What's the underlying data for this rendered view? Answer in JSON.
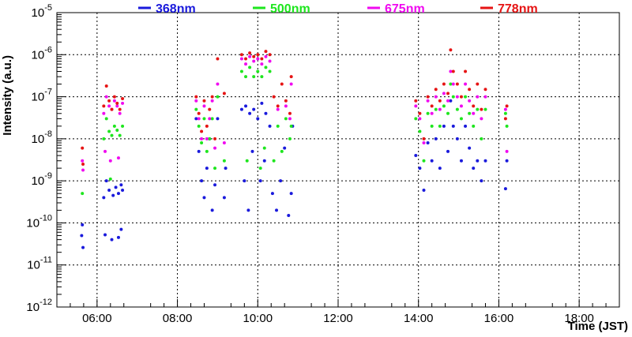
{
  "chart_data": {
    "type": "scatter",
    "title": "",
    "xlabel": "Time (JST)",
    "ylabel": "Intensity (a.u.)",
    "x_scale": "time",
    "y_scale": "log",
    "xlim": [
      "05:00",
      "19:00"
    ],
    "ylim": [
      1e-12,
      1e-05
    ],
    "grid": true,
    "x_ticks": [
      "06:00",
      "08:00",
      "10:00",
      "12:00",
      "14:00",
      "16:00",
      "18:00"
    ],
    "y_ticks": [
      {
        "base": "10",
        "exp": "-12",
        "value": 1e-12
      },
      {
        "base": "10",
        "exp": "-11",
        "value": 1e-11
      },
      {
        "base": "10",
        "exp": "-10",
        "value": 1e-10
      },
      {
        "base": "10",
        "exp": "-9",
        "value": 1e-09
      },
      {
        "base": "10",
        "exp": "-8",
        "value": 1e-08
      },
      {
        "base": "10",
        "exp": "-7",
        "value": 1e-07
      },
      {
        "base": "10",
        "exp": "-6",
        "value": 1e-06
      },
      {
        "base": "10",
        "exp": "-5",
        "value": 1e-05
      }
    ],
    "legend_position": "top",
    "series": [
      {
        "name": "368nm",
        "color": "#1a1adc",
        "points": [
          [
            "05:38",
            9e-11
          ],
          [
            "05:39",
            2.6e-11
          ],
          [
            "05:37",
            5e-11
          ],
          [
            "06:10",
            4e-10
          ],
          [
            "06:14",
            1e-09
          ],
          [
            "06:18",
            6e-10
          ],
          [
            "06:24",
            4.5e-10
          ],
          [
            "06:28",
            7e-10
          ],
          [
            "06:32",
            5e-10
          ],
          [
            "06:36",
            8e-10
          ],
          [
            "06:38",
            6e-10
          ],
          [
            "06:22",
            4e-11
          ],
          [
            "06:32",
            4.5e-11
          ],
          [
            "06:36",
            7e-11
          ],
          [
            "06:12",
            5.2e-11
          ],
          [
            "08:28",
            3e-08
          ],
          [
            "08:32",
            5e-09
          ],
          [
            "08:36",
            1e-09
          ],
          [
            "08:40",
            4e-10
          ],
          [
            "08:44",
            2e-09
          ],
          [
            "08:48",
            1e-08
          ],
          [
            "08:52",
            2e-10
          ],
          [
            "08:56",
            8e-10
          ],
          [
            "09:00",
            3e-08
          ],
          [
            "09:10",
            4e-10
          ],
          [
            "09:12",
            2e-09
          ],
          [
            "09:36",
            5e-08
          ],
          [
            "09:42",
            6e-08
          ],
          [
            "09:48",
            4e-08
          ],
          [
            "09:54",
            5e-08
          ],
          [
            "10:00",
            3e-08
          ],
          [
            "10:06",
            7e-08
          ],
          [
            "10:12",
            4e-08
          ],
          [
            "10:18",
            2e-08
          ],
          [
            "09:40",
            1e-09
          ],
          [
            "09:46",
            2e-10
          ],
          [
            "09:52",
            5e-09
          ],
          [
            "10:04",
            1e-09
          ],
          [
            "10:10",
            3e-09
          ],
          [
            "10:22",
            5e-10
          ],
          [
            "10:28",
            2e-10
          ],
          [
            "10:34",
            1e-09
          ],
          [
            "10:40",
            6e-09
          ],
          [
            "10:46",
            1.5e-10
          ],
          [
            "10:50",
            5e-10
          ],
          [
            "10:52",
            2e-08
          ],
          [
            "13:56",
            4e-09
          ],
          [
            "14:02",
            2e-09
          ],
          [
            "14:08",
            6e-10
          ],
          [
            "14:14",
            8e-09
          ],
          [
            "14:20",
            3e-09
          ],
          [
            "14:26",
            1e-08
          ],
          [
            "14:32",
            2e-09
          ],
          [
            "14:38",
            2e-08
          ],
          [
            "14:44",
            5e-09
          ],
          [
            "14:48",
            8e-08
          ],
          [
            "14:52",
            2e-08
          ],
          [
            "14:58",
            1e-08
          ],
          [
            "15:04",
            3e-09
          ],
          [
            "15:10",
            2e-08
          ],
          [
            "15:16",
            6e-09
          ],
          [
            "15:22",
            2e-09
          ],
          [
            "15:28",
            3e-09
          ],
          [
            "15:34",
            1e-09
          ],
          [
            "15:40",
            3e-09
          ],
          [
            "16:12",
            3e-09
          ],
          [
            "16:10",
            6.5e-10
          ]
        ]
      },
      {
        "name": "500nm",
        "color": "#1ee61e",
        "points": [
          [
            "05:38",
            5e-10
          ],
          [
            "06:10",
            1e-08
          ],
          [
            "06:14",
            3e-08
          ],
          [
            "06:18",
            1.5e-08
          ],
          [
            "06:22",
            1.2e-08
          ],
          [
            "06:26",
            2e-08
          ],
          [
            "06:30",
            1.6e-08
          ],
          [
            "06:34",
            1.2e-08
          ],
          [
            "06:38",
            2e-08
          ],
          [
            "06:20",
            1.1e-09
          ],
          [
            "08:28",
            5e-08
          ],
          [
            "08:32",
            2e-08
          ],
          [
            "08:36",
            8e-09
          ],
          [
            "08:40",
            3e-08
          ],
          [
            "08:44",
            5e-09
          ],
          [
            "08:48",
            1e-08
          ],
          [
            "08:52",
            3e-08
          ],
          [
            "08:56",
            2e-09
          ],
          [
            "09:00",
            1e-07
          ],
          [
            "09:10",
            3e-09
          ],
          [
            "09:36",
            4e-07
          ],
          [
            "09:42",
            3e-07
          ],
          [
            "09:48",
            5e-07
          ],
          [
            "09:54",
            3e-07
          ],
          [
            "10:00",
            4e-07
          ],
          [
            "10:06",
            3e-07
          ],
          [
            "10:12",
            5e-07
          ],
          [
            "10:18",
            4e-07
          ],
          [
            "09:44",
            3e-09
          ],
          [
            "10:04",
            2e-09
          ],
          [
            "10:10",
            6e-09
          ],
          [
            "10:24",
            3e-09
          ],
          [
            "10:30",
            2e-08
          ],
          [
            "10:36",
            5e-09
          ],
          [
            "10:42",
            3e-08
          ],
          [
            "10:48",
            1e-08
          ],
          [
            "10:50",
            2e-08
          ],
          [
            "13:56",
            3e-08
          ],
          [
            "14:02",
            1.5e-08
          ],
          [
            "14:08",
            3e-09
          ],
          [
            "14:14",
            4e-08
          ],
          [
            "14:20",
            2e-08
          ],
          [
            "14:26",
            5e-08
          ],
          [
            "14:32",
            2e-08
          ],
          [
            "14:38",
            6e-08
          ],
          [
            "14:44",
            4e-08
          ],
          [
            "14:48",
            2e-07
          ],
          [
            "14:52",
            1e-07
          ],
          [
            "14:58",
            5e-08
          ],
          [
            "15:04",
            3e-08
          ],
          [
            "15:10",
            1e-07
          ],
          [
            "15:16",
            4e-08
          ],
          [
            "15:22",
            2e-08
          ],
          [
            "15:28",
            5e-08
          ],
          [
            "15:34",
            1e-08
          ],
          [
            "15:40",
            5e-08
          ],
          [
            "16:12",
            2e-08
          ],
          [
            "16:10",
            4e-08
          ]
        ]
      },
      {
        "name": "675nm",
        "color": "#f00af0",
        "points": [
          [
            "05:38",
            3e-09
          ],
          [
            "05:39",
            1.8e-09
          ],
          [
            "06:10",
            4e-08
          ],
          [
            "06:14",
            1e-07
          ],
          [
            "06:18",
            6e-08
          ],
          [
            "06:22",
            5e-08
          ],
          [
            "06:26",
            8e-08
          ],
          [
            "06:30",
            6e-08
          ],
          [
            "06:34",
            4e-08
          ],
          [
            "06:38",
            7e-08
          ],
          [
            "06:12",
            5e-09
          ],
          [
            "06:20",
            3e-09
          ],
          [
            "06:32",
            3.5e-09
          ],
          [
            "08:28",
            8e-08
          ],
          [
            "08:32",
            3e-08
          ],
          [
            "08:36",
            1e-08
          ],
          [
            "08:40",
            6e-08
          ],
          [
            "08:44",
            1e-08
          ],
          [
            "08:48",
            3e-08
          ],
          [
            "08:52",
            8e-08
          ],
          [
            "08:56",
            6e-09
          ],
          [
            "09:00",
            2e-07
          ],
          [
            "09:10",
            8e-09
          ],
          [
            "09:36",
            8e-07
          ],
          [
            "09:42",
            6e-07
          ],
          [
            "09:48",
            9e-07
          ],
          [
            "09:54",
            7e-07
          ],
          [
            "10:00",
            8e-07
          ],
          [
            "10:06",
            6e-07
          ],
          [
            "10:12",
            9e-07
          ],
          [
            "10:18",
            7e-07
          ],
          [
            "10:30",
            5e-08
          ],
          [
            "10:42",
            6e-08
          ],
          [
            "10:48",
            3e-08
          ],
          [
            "10:50",
            2e-07
          ],
          [
            "13:56",
            6e-08
          ],
          [
            "14:02",
            3e-08
          ],
          [
            "14:08",
            8e-09
          ],
          [
            "14:14",
            8e-08
          ],
          [
            "14:20",
            4e-08
          ],
          [
            "14:26",
            1e-07
          ],
          [
            "14:32",
            5e-08
          ],
          [
            "14:38",
            1.2e-07
          ],
          [
            "14:44",
            8e-08
          ],
          [
            "14:48",
            4e-07
          ],
          [
            "14:52",
            2e-07
          ],
          [
            "14:58",
            1e-07
          ],
          [
            "15:04",
            6e-08
          ],
          [
            "15:10",
            2e-07
          ],
          [
            "15:16",
            8e-08
          ],
          [
            "15:22",
            4e-08
          ],
          [
            "15:28",
            1e-07
          ],
          [
            "15:34",
            3e-08
          ],
          [
            "15:40",
            1e-07
          ],
          [
            "16:12",
            5e-09
          ],
          [
            "16:10",
            5e-08
          ]
        ]
      },
      {
        "name": "778nm",
        "color": "#e61414",
        "points": [
          [
            "05:38",
            6e-09
          ],
          [
            "05:39",
            2.5e-09
          ],
          [
            "06:10",
            6e-08
          ],
          [
            "06:14",
            1.8e-07
          ],
          [
            "06:18",
            8e-08
          ],
          [
            "06:22",
            5e-08
          ],
          [
            "06:26",
            1e-07
          ],
          [
            "06:30",
            7e-08
          ],
          [
            "06:34",
            5e-08
          ],
          [
            "06:38",
            9e-08
          ],
          [
            "08:28",
            1e-07
          ],
          [
            "08:32",
            4e-08
          ],
          [
            "08:36",
            1.5e-08
          ],
          [
            "08:40",
            8e-08
          ],
          [
            "08:44",
            2e-08
          ],
          [
            "08:48",
            5e-08
          ],
          [
            "08:52",
            1e-07
          ],
          [
            "08:56",
            1e-08
          ],
          [
            "09:00",
            8e-07
          ],
          [
            "09:10",
            1.2e-07
          ],
          [
            "09:36",
            1e-06
          ],
          [
            "09:42",
            8e-07
          ],
          [
            "09:48",
            1.1e-06
          ],
          [
            "09:54",
            9e-07
          ],
          [
            "10:00",
            1e-06
          ],
          [
            "10:06",
            8e-07
          ],
          [
            "10:12",
            1.2e-06
          ],
          [
            "10:18",
            1e-06
          ],
          [
            "10:24",
            1e-07
          ],
          [
            "10:30",
            6e-08
          ],
          [
            "10:36",
            2e-07
          ],
          [
            "10:42",
            8e-08
          ],
          [
            "10:48",
            4e-08
          ],
          [
            "10:50",
            3e-07
          ],
          [
            "13:56",
            8e-08
          ],
          [
            "14:02",
            4e-08
          ],
          [
            "14:08",
            1e-08
          ],
          [
            "14:14",
            1e-07
          ],
          [
            "14:20",
            6e-08
          ],
          [
            "14:26",
            1.5e-07
          ],
          [
            "14:32",
            8e-08
          ],
          [
            "14:38",
            2e-07
          ],
          [
            "14:44",
            1.2e-07
          ],
          [
            "14:48",
            1.3e-06
          ],
          [
            "14:52",
            4e-07
          ],
          [
            "14:58",
            2e-07
          ],
          [
            "15:04",
            1e-07
          ],
          [
            "15:10",
            4e-07
          ],
          [
            "15:16",
            1.5e-07
          ],
          [
            "15:22",
            6e-08
          ],
          [
            "15:28",
            2e-07
          ],
          [
            "15:34",
            5e-08
          ],
          [
            "15:40",
            1.5e-07
          ],
          [
            "16:12",
            6e-08
          ],
          [
            "16:10",
            3e-08
          ]
        ]
      }
    ]
  }
}
